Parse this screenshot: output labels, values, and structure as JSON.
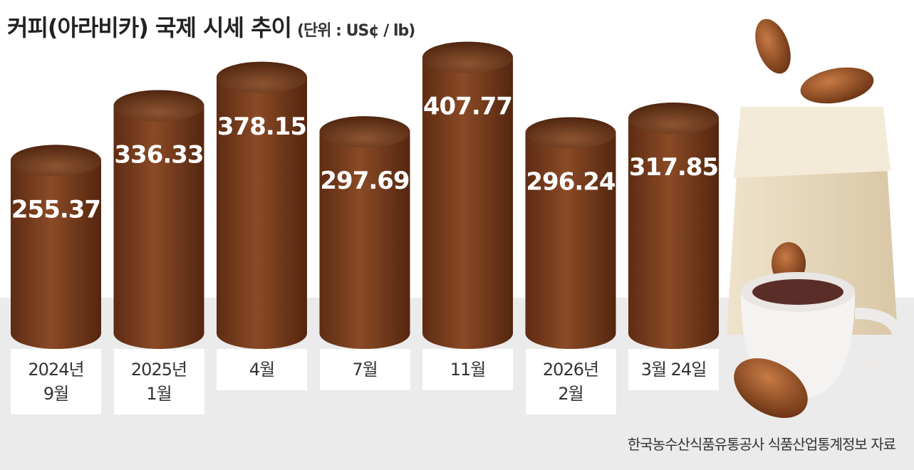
{
  "chart_data": {
    "type": "bar",
    "title": "커피(아라비카) 국제 시세 추이",
    "subtitle": "(단위 : US¢ / lb)",
    "categories": [
      "2024년\n9월",
      "2025년\n1월",
      "4월",
      "7월",
      "11월",
      "2026년\n2월",
      "3월 24일"
    ],
    "values": [
      255.37,
      336.33,
      378.15,
      297.69,
      407.77,
      296.24,
      317.85
    ],
    "color": "#7b3f1e",
    "source": "한국농수산식품유통공사 식품산업통계정보 자료"
  }
}
